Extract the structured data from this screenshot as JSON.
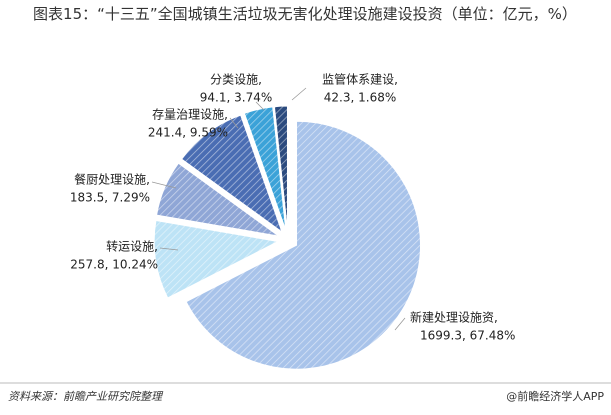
{
  "chart_data": {
    "type": "pie",
    "title": "图表15：“十三五”全国城镇生活垃圾无害化处理设施建设投资（单位：亿元，%）",
    "categories": [
      "新建处理设施资,",
      "转运设施,",
      "餐厨处理设施,",
      "存量治理设施,",
      "分类设施,",
      "监管体系建设,"
    ],
    "values": [
      1699.3,
      257.8,
      183.5,
      241.4,
      94.1,
      42.3
    ],
    "value_labels": [
      "1699.3, 67.48%",
      "257.8, 10.24%",
      "183.5, 7.29%",
      "241.4, 9.59%",
      "94.1, 3.74%",
      "42.3, 1.68%"
    ],
    "colors": [
      "#a8c3ea",
      "#bde3f6",
      "#8fa6d6",
      "#4a6db3",
      "#3ba2d8",
      "#2b4a7e"
    ],
    "source": "资料来源：前瞻产业研究院整理",
    "brand": "@前瞻经济学人APP"
  }
}
